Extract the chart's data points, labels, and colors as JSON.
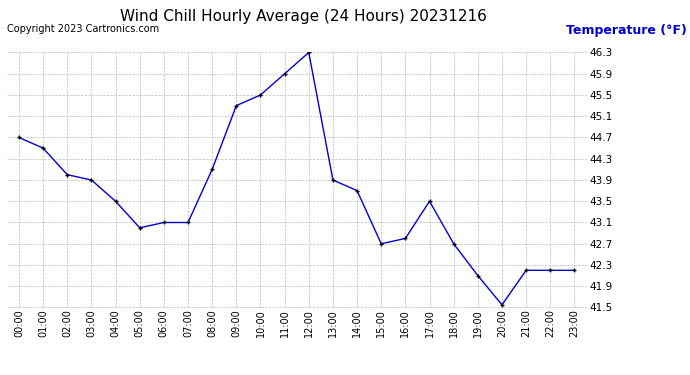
{
  "title": "Wind Chill Hourly Average (24 Hours) 20231216",
  "copyright_text": "Copyright 2023 Cartronics.com",
  "ylabel": "Temperature (°F)",
  "hours": [
    "00:00",
    "01:00",
    "02:00",
    "03:00",
    "04:00",
    "05:00",
    "06:00",
    "07:00",
    "08:00",
    "09:00",
    "10:00",
    "11:00",
    "12:00",
    "13:00",
    "14:00",
    "15:00",
    "16:00",
    "17:00",
    "18:00",
    "19:00",
    "20:00",
    "21:00",
    "22:00",
    "23:00"
  ],
  "values": [
    44.7,
    44.5,
    44.0,
    43.9,
    43.5,
    43.0,
    43.1,
    43.1,
    44.1,
    45.3,
    45.5,
    45.9,
    46.3,
    43.9,
    43.7,
    42.7,
    42.8,
    43.5,
    42.7,
    42.1,
    41.55,
    42.2,
    42.2,
    42.2
  ],
  "ylim_min": 41.5,
  "ylim_max": 46.3,
  "yticks": [
    41.5,
    41.9,
    42.3,
    42.7,
    43.1,
    43.5,
    43.9,
    44.3,
    44.7,
    45.1,
    45.5,
    45.9,
    46.3
  ],
  "line_color": "#0000cc",
  "marker": "+",
  "marker_color": "#000000",
  "background_color": "#ffffff",
  "grid_color": "#bbbbbb",
  "title_fontsize": 11,
  "title_color": "#000000",
  "ylabel_color": "#0000cc",
  "ylabel_fontsize": 9,
  "copyright_color": "#000000",
  "copyright_fontsize": 7,
  "tick_fontsize": 7.5,
  "xtick_fontsize": 7
}
